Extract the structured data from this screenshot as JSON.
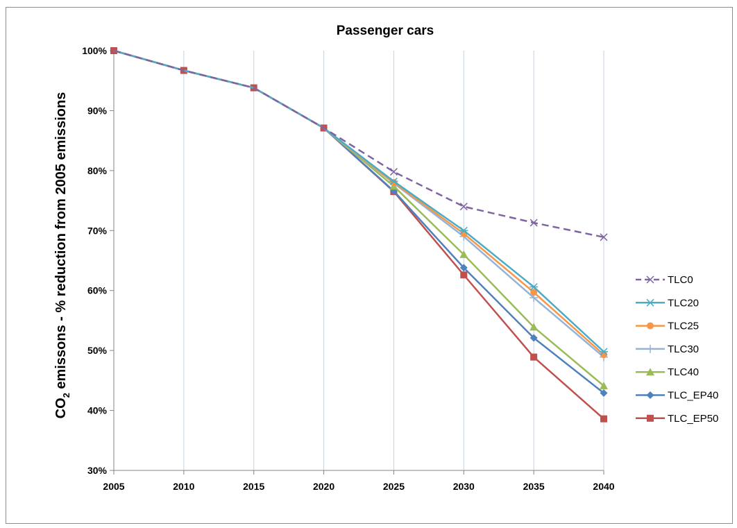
{
  "chart_data": {
    "type": "line",
    "title": "Passenger cars",
    "ylabel": "CO2 emissons - % reduction from 2005 emissions",
    "ylabel_parts": {
      "pre": "CO",
      "sub": "2",
      "post": " emissons - % reduction from 2005 emissions"
    },
    "xlabel": "",
    "x": [
      2005,
      2010,
      2015,
      2020,
      2025,
      2030,
      2035,
      2040
    ],
    "xlim": [
      2005,
      2040
    ],
    "ylim": [
      30,
      100
    ],
    "yticks": [
      30,
      40,
      50,
      60,
      70,
      80,
      90,
      100
    ],
    "ytick_labels": [
      "30%",
      "40%",
      "50%",
      "60%",
      "70%",
      "80%",
      "90%",
      "100%"
    ],
    "xtick_labels": [
      "2005",
      "2010",
      "2015",
      "2020",
      "2025",
      "2030",
      "2035",
      "2040"
    ],
    "grid": "vertical",
    "legend_position": "right",
    "series": [
      {
        "name": "TLC0",
        "color": "#8064a2",
        "marker": "x",
        "dashed": true,
        "values": [
          100,
          96.7,
          93.8,
          87.1,
          79.8,
          74.0,
          71.3,
          68.9
        ]
      },
      {
        "name": "TLC20",
        "color": "#4bacc6",
        "marker": "star",
        "dashed": false,
        "values": [
          100,
          96.7,
          93.8,
          87.1,
          78.2,
          70.0,
          60.6,
          49.8
        ]
      },
      {
        "name": "TLC25",
        "color": "#f79646",
        "marker": "circle",
        "dashed": false,
        "values": [
          100,
          96.7,
          93.8,
          87.1,
          78.0,
          69.5,
          59.7,
          49.3
        ]
      },
      {
        "name": "TLC30",
        "color": "#95b3d7",
        "marker": "plus",
        "dashed": false,
        "values": [
          100,
          96.7,
          93.8,
          87.1,
          77.9,
          69.0,
          58.8,
          48.9
        ]
      },
      {
        "name": "TLC40",
        "color": "#9bbb59",
        "marker": "triangle",
        "dashed": false,
        "values": [
          100,
          96.7,
          93.8,
          87.1,
          77.4,
          66.0,
          53.9,
          44.1
        ]
      },
      {
        "name": "TLC_EP40",
        "color": "#4f81bd",
        "marker": "diamond",
        "dashed": false,
        "values": [
          100,
          96.7,
          93.8,
          87.1,
          76.6,
          63.8,
          52.1,
          42.9
        ]
      },
      {
        "name": "TLC_EP50",
        "color": "#c0504d",
        "marker": "square",
        "dashed": false,
        "values": [
          100,
          96.7,
          93.8,
          87.1,
          76.5,
          62.6,
          48.9,
          38.6
        ]
      }
    ]
  }
}
